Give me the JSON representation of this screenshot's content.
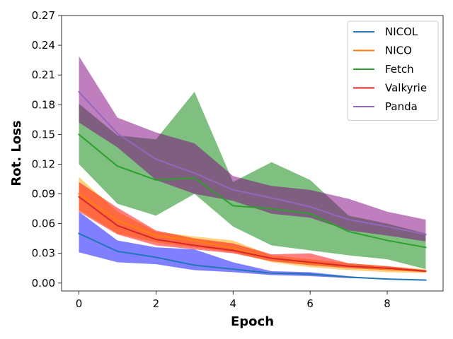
{
  "chart_data": {
    "type": "line",
    "title": "",
    "xlabel": "Epoch",
    "ylabel": "Rot. Loss",
    "xlim": [
      -0.45,
      9.45
    ],
    "ylim": [
      -0.008,
      0.27
    ],
    "x_ticks": [
      0,
      2,
      4,
      6,
      8
    ],
    "x_tick_labels": [
      "0",
      "2",
      "4",
      "6",
      "8"
    ],
    "y_ticks": [
      0.0,
      0.03,
      0.06,
      0.09,
      0.12,
      0.15,
      0.18,
      0.21,
      0.24,
      0.27
    ],
    "y_tick_labels": [
      "0.00",
      "0.03",
      "0.06",
      "0.09",
      "0.12",
      "0.15",
      "0.18",
      "0.21",
      "0.24",
      "0.27"
    ],
    "grid": false,
    "legend_position": "top-right",
    "x": [
      0,
      1,
      2,
      3,
      4,
      5,
      6,
      7,
      8,
      9
    ],
    "series": [
      {
        "name": "NICOL",
        "color": "#1f77b4",
        "fill_color": "#0000ff",
        "values": [
          0.05,
          0.032,
          0.026,
          0.018,
          0.014,
          0.01,
          0.009,
          0.006,
          0.004,
          0.003
        ],
        "lower": [
          0.031,
          0.021,
          0.019,
          0.013,
          0.011,
          0.008,
          0.007,
          0.005,
          0.004,
          0.003
        ],
        "upper": [
          0.072,
          0.043,
          0.036,
          0.034,
          0.021,
          0.012,
          0.011,
          0.007,
          0.004,
          0.003
        ]
      },
      {
        "name": "NICO",
        "color": "#ff7f0e",
        "fill_color": "#ffa500",
        "values": [
          0.09,
          0.063,
          0.048,
          0.043,
          0.035,
          0.025,
          0.02,
          0.017,
          0.014,
          0.012
        ],
        "lower": [
          0.074,
          0.05,
          0.041,
          0.036,
          0.031,
          0.021,
          0.016,
          0.013,
          0.011,
          0.01
        ],
        "upper": [
          0.107,
          0.072,
          0.052,
          0.047,
          0.043,
          0.028,
          0.024,
          0.02,
          0.017,
          0.014
        ]
      },
      {
        "name": "Fetch",
        "color": "#2ca02c",
        "fill_color": "#008000",
        "values": [
          0.15,
          0.118,
          0.104,
          0.106,
          0.078,
          0.075,
          0.07,
          0.052,
          0.043,
          0.036
        ],
        "lower": [
          0.12,
          0.08,
          0.068,
          0.09,
          0.057,
          0.038,
          0.033,
          0.028,
          0.024,
          0.014
        ],
        "upper": [
          0.181,
          0.149,
          0.145,
          0.193,
          0.102,
          0.122,
          0.104,
          0.068,
          0.06,
          0.05
        ]
      },
      {
        "name": "Valkyrie",
        "color": "#d62728",
        "fill_color": "#ff0000",
        "values": [
          0.087,
          0.058,
          0.044,
          0.038,
          0.033,
          0.025,
          0.021,
          0.017,
          0.015,
          0.012
        ],
        "lower": [
          0.072,
          0.049,
          0.038,
          0.034,
          0.03,
          0.022,
          0.018,
          0.015,
          0.013,
          0.011
        ],
        "upper": [
          0.102,
          0.076,
          0.053,
          0.045,
          0.04,
          0.029,
          0.03,
          0.02,
          0.017,
          0.013
        ]
      },
      {
        "name": "Panda",
        "color": "#9467bd",
        "fill_color": "#800080",
        "values": [
          0.193,
          0.151,
          0.125,
          0.111,
          0.094,
          0.086,
          0.077,
          0.064,
          0.057,
          0.049
        ],
        "lower": [
          0.162,
          0.137,
          0.104,
          0.09,
          0.083,
          0.07,
          0.066,
          0.053,
          0.048,
          0.042
        ],
        "upper": [
          0.229,
          0.167,
          0.152,
          0.141,
          0.108,
          0.098,
          0.094,
          0.085,
          0.072,
          0.064
        ]
      }
    ]
  }
}
